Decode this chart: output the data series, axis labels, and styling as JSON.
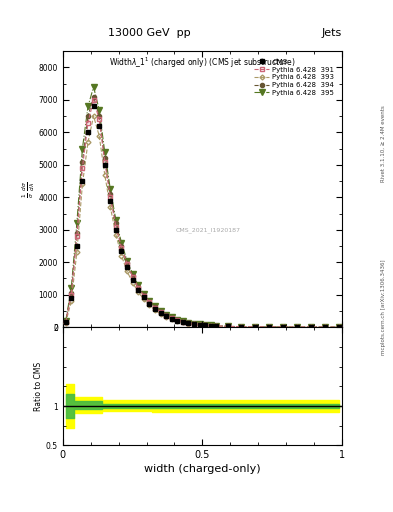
{
  "title": "13000 GeV  pp",
  "title_right": "Jets",
  "plot_title": "Widthλ_1¹ (charged only) (CMS jet substructure)",
  "xlabel": "width (charged-only)",
  "watermark": "mcplots.cern.ch [arXiv:1306.3436]",
  "rivet_version": "Rivet 3.1.10, ≥ 2.4M events",
  "cms_label": "CMS_2021_I1920187",
  "main_ylim": [
    0,
    8500
  ],
  "main_yticks": [
    0,
    1000,
    2000,
    3000,
    4000,
    5000,
    6000,
    7000,
    8000
  ],
  "ratio_ylim": [
    0.5,
    2.0
  ],
  "xlim": [
    0,
    1.0
  ],
  "x_data": [
    0.01,
    0.03,
    0.05,
    0.07,
    0.09,
    0.11,
    0.13,
    0.15,
    0.17,
    0.19,
    0.21,
    0.23,
    0.25,
    0.27,
    0.29,
    0.31,
    0.33,
    0.35,
    0.37,
    0.39,
    0.41,
    0.43,
    0.45,
    0.47,
    0.49,
    0.51,
    0.53,
    0.55,
    0.59,
    0.64,
    0.69,
    0.74,
    0.79,
    0.84,
    0.89,
    0.94,
    0.99
  ],
  "cms_y": [
    150,
    900,
    2500,
    4500,
    6000,
    6800,
    6200,
    5000,
    3900,
    3000,
    2350,
    1850,
    1450,
    1150,
    920,
    720,
    560,
    430,
    330,
    260,
    200,
    155,
    118,
    92,
    72,
    55,
    44,
    36,
    22,
    13,
    9,
    6,
    4.5,
    2.8,
    1.8,
    0.9,
    0.4
  ],
  "py391_y": [
    150,
    1000,
    2800,
    4900,
    6300,
    7000,
    6400,
    5100,
    4000,
    3100,
    2450,
    1950,
    1550,
    1220,
    970,
    770,
    600,
    462,
    355,
    278,
    218,
    167,
    127,
    99,
    77,
    59,
    47,
    38,
    24,
    14.5,
    9.8,
    6.7,
    4.7,
    2.9,
    1.9,
    1.0,
    0.45
  ],
  "py393_y": [
    130,
    800,
    2300,
    4400,
    5700,
    6500,
    5900,
    4700,
    3700,
    2850,
    2200,
    1720,
    1370,
    1080,
    860,
    680,
    524,
    403,
    308,
    242,
    188,
    144,
    110,
    86,
    67,
    51,
    41,
    33,
    20.5,
    12.5,
    8.4,
    5.7,
    4.0,
    2.5,
    1.6,
    0.82,
    0.37
  ],
  "py394_y": [
    160,
    1050,
    2900,
    5100,
    6500,
    7100,
    6500,
    5200,
    4100,
    3200,
    2500,
    1980,
    1580,
    1240,
    990,
    790,
    614,
    473,
    364,
    285,
    223,
    171,
    131,
    102,
    80,
    61,
    49,
    39,
    24.5,
    14.8,
    10.0,
    6.8,
    4.8,
    3.0,
    1.95,
    1.01,
    0.46
  ],
  "py395_y": [
    180,
    1200,
    3200,
    5500,
    6800,
    7400,
    6700,
    5400,
    4250,
    3300,
    2600,
    2050,
    1640,
    1290,
    1030,
    820,
    638,
    492,
    380,
    298,
    234,
    180,
    138,
    108,
    84,
    65,
    52,
    42,
    26,
    15.5,
    10.4,
    7.1,
    5.0,
    3.1,
    2.0,
    1.04,
    0.47
  ],
  "cms_color": "#000000",
  "py391_color": "#cc6677",
  "py393_color": "#aa9966",
  "py394_color": "#665533",
  "py395_color": "#557722",
  "ratio_band_yellow": "#ffff00",
  "ratio_band_green": "#44bb44",
  "background_color": "#ffffff"
}
